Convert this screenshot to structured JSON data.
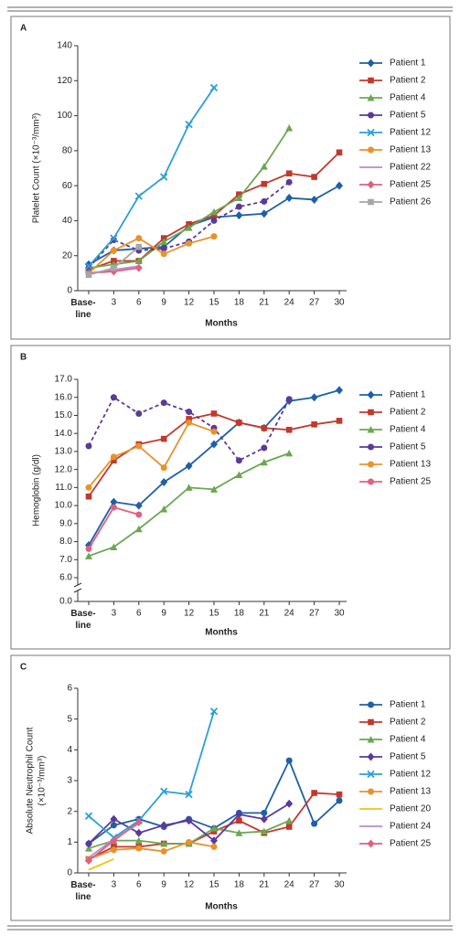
{
  "chart_data": [
    {
      "type": "line",
      "panel_label": "A",
      "ylabel": "Platelet Count (×10⁻³/mm³)",
      "xlabel": "Months",
      "categories": [
        "Base-line",
        "3",
        "6",
        "9",
        "12",
        "15",
        "18",
        "21",
        "24",
        "27",
        "30"
      ],
      "ylim": [
        0,
        140
      ],
      "yticks": [
        0,
        20,
        40,
        60,
        80,
        100,
        120,
        140
      ],
      "series": [
        {
          "name": "Patient 1",
          "color": "#1f5fa8",
          "marker": "diamond",
          "values": [
            15,
            23,
            24,
            25,
            37,
            42,
            43,
            44,
            53,
            52,
            60
          ]
        },
        {
          "name": "Patient 2",
          "color": "#c0392b",
          "marker": "square",
          "values": [
            12,
            17,
            17,
            30,
            38,
            43,
            55,
            61,
            67,
            65,
            79
          ]
        },
        {
          "name": "Patient 4",
          "color": "#6aa84f",
          "marker": "triangle",
          "values": [
            13,
            15,
            17,
            28,
            36,
            45,
            53,
            71,
            93,
            null,
            null
          ]
        },
        {
          "name": "Patient 5",
          "color": "#5b3a99",
          "marker": "circle",
          "dashed": true,
          "values": [
            13,
            29,
            23,
            24,
            28,
            40,
            48,
            51,
            62,
            null,
            null
          ]
        },
        {
          "name": "Patient 12",
          "color": "#2b9fd6",
          "marker": "x",
          "values": [
            14,
            30,
            54,
            65,
            95,
            116,
            null,
            null,
            null,
            null,
            null
          ]
        },
        {
          "name": "Patient 13",
          "color": "#e8922a",
          "marker": "circle",
          "values": [
            10,
            23,
            30,
            21,
            27,
            31,
            null,
            null,
            null,
            null,
            null
          ]
        },
        {
          "name": "Patient 22",
          "color": "#b58cd1",
          "marker": "none",
          "values": [
            10,
            12,
            14,
            null,
            null,
            null,
            null,
            null,
            null,
            null,
            null
          ]
        },
        {
          "name": "Patient 25",
          "color": "#e0607e",
          "marker": "diamond",
          "values": [
            10,
            11,
            13,
            null,
            null,
            null,
            null,
            null,
            null,
            null,
            null
          ]
        },
        {
          "name": "Patient 26",
          "color": "#a6a6a6",
          "marker": "square",
          "values": [
            9,
            13,
            25,
            null,
            null,
            null,
            null,
            null,
            null,
            null,
            null
          ]
        }
      ]
    },
    {
      "type": "line",
      "panel_label": "B",
      "ylabel": "Hemoglobin (g/dl)",
      "xlabel": "Months",
      "categories": [
        "Base-line",
        "3",
        "6",
        "9",
        "12",
        "15",
        "18",
        "21",
        "24",
        "27",
        "30"
      ],
      "ylim": [
        0,
        17
      ],
      "y_break": [
        0,
        6
      ],
      "yticks": [
        {
          "value": 0,
          "label": "0.0"
        },
        {
          "value": 6,
          "label": "6.0"
        },
        {
          "value": 7,
          "label": "7.0"
        },
        {
          "value": 8,
          "label": "8.0"
        },
        {
          "value": 9,
          "label": "9.0"
        },
        {
          "value": 10,
          "label": "10.0"
        },
        {
          "value": 11,
          "label": "11.0"
        },
        {
          "value": 12,
          "label": "12.0"
        },
        {
          "value": 13,
          "label": "13.0"
        },
        {
          "value": 14,
          "label": "14.0"
        },
        {
          "value": 15,
          "label": "15.0"
        },
        {
          "value": 16,
          "label": "16.0"
        },
        {
          "value": 17,
          "label": "17.0"
        }
      ],
      "series": [
        {
          "name": "Patient 1",
          "color": "#1f5fa8",
          "marker": "diamond",
          "values": [
            7.8,
            10.2,
            10.0,
            11.3,
            12.2,
            13.4,
            14.6,
            14.3,
            15.8,
            16.0,
            16.4
          ]
        },
        {
          "name": "Patient 2",
          "color": "#c0392b",
          "marker": "square",
          "values": [
            10.5,
            12.5,
            13.4,
            13.7,
            14.8,
            15.1,
            14.6,
            14.3,
            14.2,
            14.5,
            14.7
          ]
        },
        {
          "name": "Patient 4",
          "color": "#6aa84f",
          "marker": "triangle",
          "values": [
            7.2,
            7.7,
            8.7,
            9.8,
            11.0,
            10.9,
            11.7,
            12.4,
            12.9,
            null,
            null
          ]
        },
        {
          "name": "Patient 5",
          "color": "#5b3a99",
          "marker": "circle",
          "dashed": true,
          "values": [
            13.3,
            16.0,
            15.1,
            15.7,
            15.2,
            14.3,
            12.5,
            13.2,
            15.9,
            null,
            null
          ]
        },
        {
          "name": "Patient 13",
          "color": "#e8922a",
          "marker": "circle",
          "values": [
            11.0,
            12.7,
            13.3,
            12.1,
            14.6,
            14.1,
            null,
            null,
            null,
            null,
            null
          ]
        },
        {
          "name": "Patient 25",
          "color": "#e0607e",
          "marker": "circle",
          "values": [
            7.6,
            9.9,
            9.5,
            null,
            null,
            null,
            null,
            null,
            null,
            null,
            null
          ]
        }
      ]
    },
    {
      "type": "line",
      "panel_label": "C",
      "ylabel": [
        "Absolute Neutrophil Count",
        "(×10⁻³/mm³)"
      ],
      "xlabel": "Months",
      "categories": [
        "Base-line",
        "3",
        "6",
        "9",
        "12",
        "15",
        "18",
        "21",
        "24",
        "27",
        "30"
      ],
      "ylim": [
        0,
        6
      ],
      "yticks": [
        0,
        1,
        2,
        3,
        4,
        5,
        6
      ],
      "series": [
        {
          "name": "Patient 1",
          "color": "#1f5fa8",
          "marker": "circle",
          "values": [
            0.95,
            1.55,
            1.75,
            1.5,
            1.75,
            1.45,
            1.95,
            1.95,
            3.65,
            1.6,
            2.35
          ]
        },
        {
          "name": "Patient 2",
          "color": "#c0392b",
          "marker": "square",
          "values": [
            0.45,
            0.85,
            0.85,
            0.95,
            0.95,
            1.35,
            1.7,
            1.3,
            1.5,
            2.6,
            2.55
          ]
        },
        {
          "name": "Patient 4",
          "color": "#6aa84f",
          "marker": "triangle",
          "values": [
            0.8,
            1.05,
            1.05,
            0.95,
            0.95,
            1.45,
            1.3,
            1.35,
            1.7,
            null,
            null
          ]
        },
        {
          "name": "Patient 5",
          "color": "#5b3a99",
          "marker": "diamond",
          "values": [
            0.95,
            1.75,
            1.3,
            1.55,
            1.7,
            1.05,
            1.9,
            1.75,
            2.25,
            null,
            null
          ]
        },
        {
          "name": "Patient 12",
          "color": "#2b9fd6",
          "marker": "x",
          "values": [
            1.85,
            1.15,
            1.7,
            2.65,
            2.55,
            5.25,
            null,
            null,
            null,
            null,
            null
          ]
        },
        {
          "name": "Patient 13",
          "color": "#e8922a",
          "marker": "circle",
          "values": [
            0.45,
            0.75,
            0.8,
            0.7,
            1.0,
            0.85,
            null,
            null,
            null,
            null,
            null
          ]
        },
        {
          "name": "Patient 20",
          "color": "#f1c40f",
          "marker": "none",
          "values": [
            0.1,
            0.45,
            null,
            null,
            null,
            null,
            null,
            null,
            null,
            null,
            null
          ]
        },
        {
          "name": "Patient 24",
          "color": "#b58cd1",
          "marker": "none",
          "values": [
            0.5,
            1.1,
            1.6,
            null,
            null,
            null,
            null,
            null,
            null,
            null,
            null
          ]
        },
        {
          "name": "Patient 25",
          "color": "#e0607e",
          "marker": "diamond",
          "values": [
            0.4,
            1.05,
            1.65,
            null,
            null,
            null,
            null,
            null,
            null,
            null,
            null
          ]
        }
      ]
    }
  ]
}
